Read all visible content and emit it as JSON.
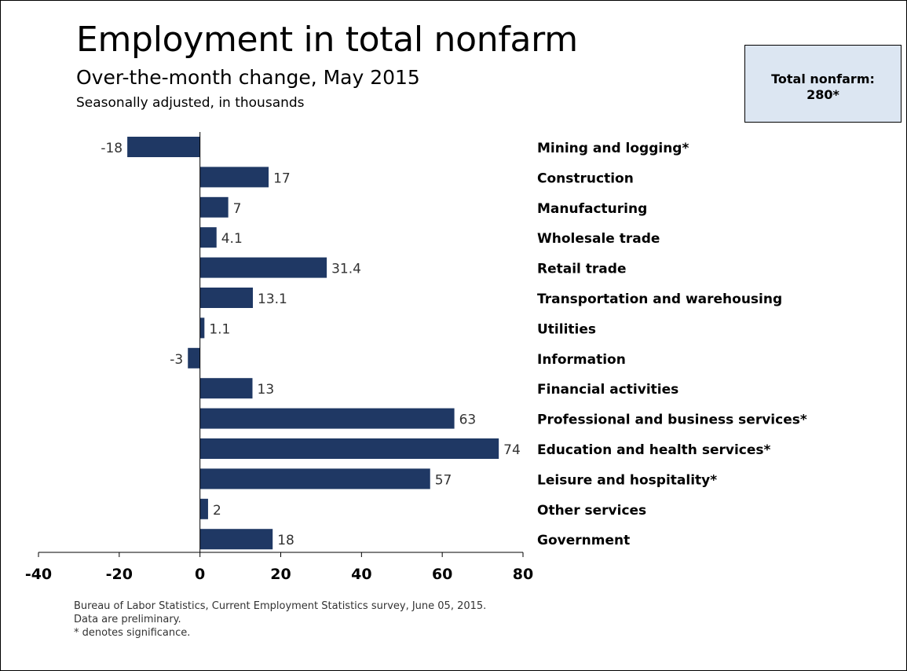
{
  "title": "Employment in total nonfarm",
  "subtitle": "Over-the-month change, May 2015",
  "subsubtitle": "Seasonally adjusted, in thousands",
  "total_box": {
    "label": "Total nonfarm:",
    "value": "280*",
    "background": "#dce6f2"
  },
  "footnotes": [
    "Bureau of Labor Statistics, Current Employment Statistics survey, June 05, 2015.",
    "Data are preliminary.",
    "* denotes significance."
  ],
  "chart_data": {
    "type": "bar",
    "orientation": "horizontal",
    "bar_color": "#1f3864",
    "categories": [
      "Mining and logging*",
      "Construction",
      "Manufacturing",
      "Wholesale trade",
      "Retail trade",
      "Transportation and warehousing",
      "Utilities",
      "Information",
      "Financial activities",
      "Professional and business services*",
      "Education and health services*",
      "Leisure and hospitality*",
      "Other services",
      "Government"
    ],
    "values": [
      -18,
      17,
      7,
      4.1,
      31.4,
      13.1,
      1.1,
      -3,
      13,
      63,
      74,
      57,
      2,
      18
    ],
    "value_labels": [
      "-18",
      "17",
      "7",
      "4.1",
      "31.4",
      "13.1",
      "1.1",
      "-3",
      "13",
      "63",
      "74",
      "57",
      "2",
      "18"
    ],
    "xlim": [
      -40,
      80
    ],
    "xticks": [
      -40,
      -20,
      0,
      20,
      40,
      60,
      80
    ],
    "grid": false,
    "legend": "none"
  }
}
